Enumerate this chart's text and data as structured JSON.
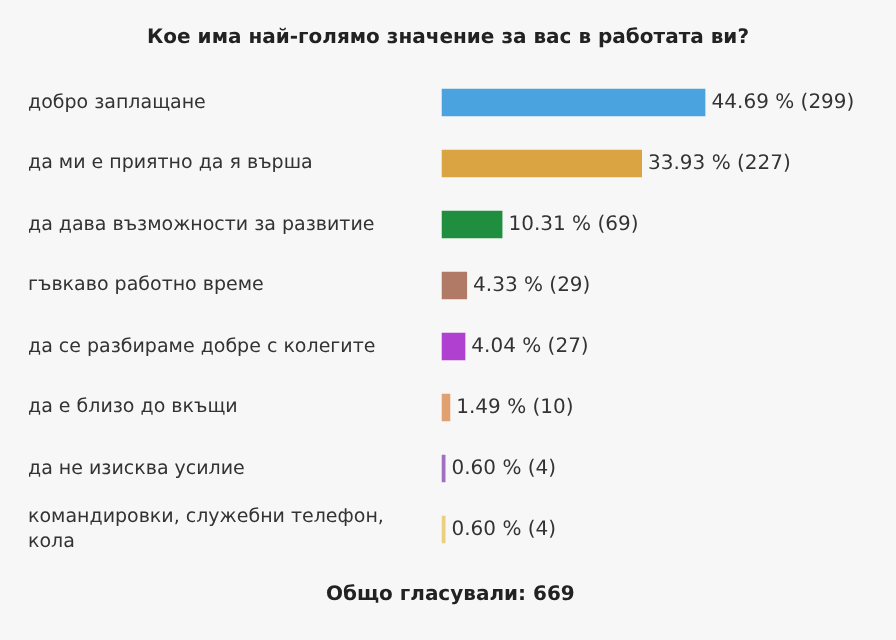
{
  "chart_data": {
    "type": "bar",
    "orientation": "horizontal",
    "title": "Кое има най-голямо значение за вас в работата ви?",
    "categories": [
      "добро заплащане",
      "да ми е приятно да я върша",
      "да дава възможности за развитие",
      "гъвкаво работно време",
      "да се разбираме добре с колегите",
      "да е близо до вкъщи",
      "да не изисква усилие",
      "командировки, служебни телефон, кола"
    ],
    "values": [
      44.69,
      33.93,
      10.31,
      4.33,
      4.04,
      1.49,
      0.6,
      0.6
    ],
    "colors": [
      "#4aa3df",
      "#d9a441",
      "#1f8f3f",
      "#b07a66",
      "#b040d0",
      "#e0a070",
      "#a070c0",
      "#e8d080"
    ],
    "value_labels": [
      "44.69 % (299)",
      "33.93 % (227)",
      "10.31 % (69)",
      "4.33 % (29)",
      "4.04 % (27)",
      "1.49 % (10)",
      "0.60 % (4)",
      "0.60 % (4)"
    ],
    "annotations": [
      "Общо гласували: 669"
    ],
    "legend": false
  }
}
